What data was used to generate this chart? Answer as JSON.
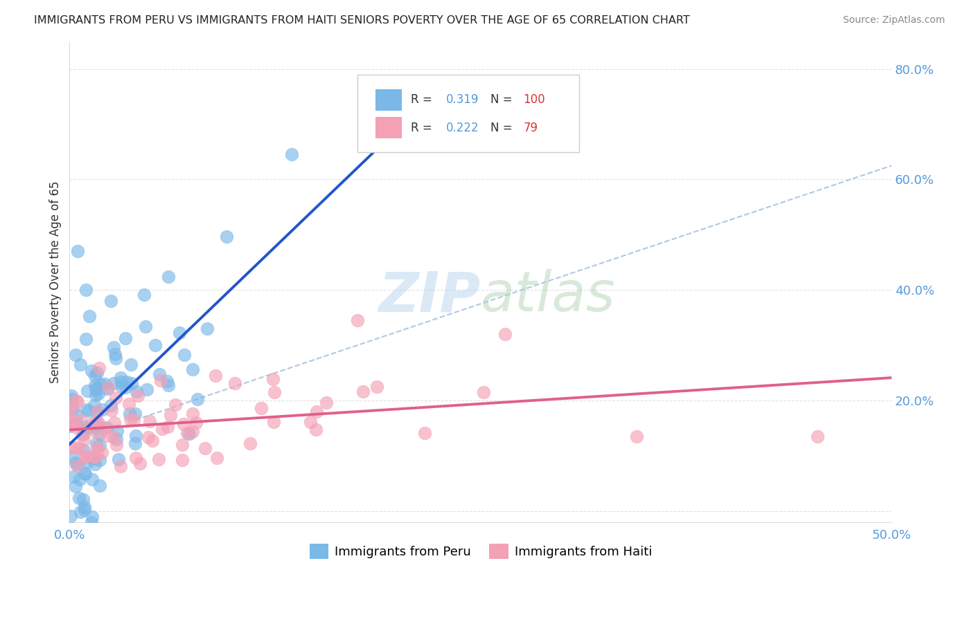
{
  "title": "IMMIGRANTS FROM PERU VS IMMIGRANTS FROM HAITI SENIORS POVERTY OVER THE AGE OF 65 CORRELATION CHART",
  "source": "Source: ZipAtlas.com",
  "ylabel": "Seniors Poverty Over the Age of 65",
  "xlim": [
    0.0,
    0.5
  ],
  "ylim": [
    -0.02,
    0.85
  ],
  "peru_color": "#7ab8e8",
  "haiti_color": "#f4a0b5",
  "peru_line_color": "#2255cc",
  "haiti_line_color": "#e0608a",
  "trend_line_color": "#b0c8e0",
  "watermark_zip": "ZIP",
  "watermark_atlas": "atlas",
  "background_color": "#ffffff",
  "grid_color": "#e0e0e0",
  "peru_R": 0.319,
  "peru_N": 100,
  "haiti_R": 0.222,
  "haiti_N": 79,
  "tick_color": "#5599dd",
  "label_color": "#333333"
}
